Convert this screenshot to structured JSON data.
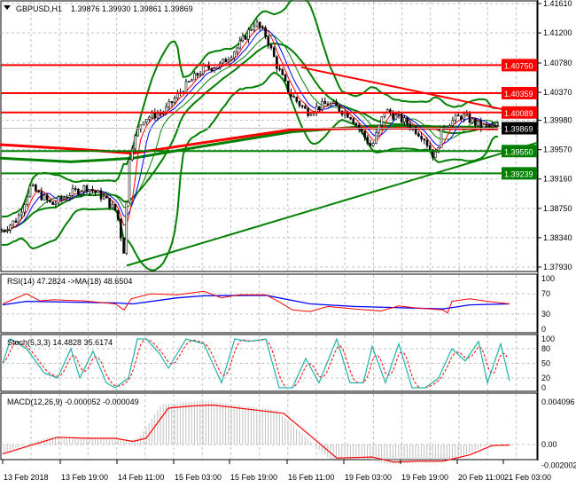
{
  "header": {
    "menu_icon": "triangle-down-icon",
    "symbol": "GBPUSD,H1",
    "ohlc": "1.39876 1.39930 1.39861 1.39869"
  },
  "colors": {
    "bull_line": "#008000",
    "bear_line": "#ff0000",
    "level_red": "#ff0000",
    "level_green": "#008000",
    "current_price_bg": "#000000",
    "grid": "#c0c0c0",
    "ma_blue": "#0000ff"
  },
  "price_axis": {
    "ticks": [
      "1.41610",
      "1.41200",
      "1.40780",
      "1.40370",
      "1.39980",
      "1.39570",
      "1.39160",
      "1.38750",
      "1.38340",
      "1.37930"
    ],
    "range": [
      1.3793,
      1.4161
    ]
  },
  "levels": [
    {
      "label": "1.40750",
      "value": 1.4075,
      "color": "red"
    },
    {
      "label": "1.40359",
      "value": 1.40359,
      "color": "red"
    },
    {
      "label": "1.40089",
      "value": 1.40089,
      "color": "red"
    },
    {
      "label": "1.39550",
      "value": 1.3955,
      "color": "green"
    },
    {
      "label": "1.39239",
      "value": 1.39239,
      "color": "green"
    }
  ],
  "current_price": "1.39869",
  "price_path": [
    [
      0,
      1.3842
    ],
    [
      20,
      1.386
    ],
    [
      35,
      1.3905
    ],
    [
      60,
      1.388
    ],
    [
      80,
      1.3895
    ],
    [
      100,
      1.3905
    ],
    [
      120,
      1.389
    ],
    [
      135,
      1.387
    ],
    [
      143,
      1.3815
    ],
    [
      150,
      1.3955
    ],
    [
      165,
      1.4
    ],
    [
      190,
      1.401
    ],
    [
      210,
      1.404
    ],
    [
      235,
      1.407
    ],
    [
      255,
      1.4075
    ],
    [
      275,
      1.41
    ],
    [
      295,
      1.4135
    ],
    [
      308,
      1.4115
    ],
    [
      320,
      1.4075
    ],
    [
      335,
      1.4035
    ],
    [
      355,
      1.401
    ],
    [
      380,
      1.4022
    ],
    [
      405,
      1.4005
    ],
    [
      430,
      1.396
    ],
    [
      445,
      1.4012
    ],
    [
      470,
      1.3995
    ],
    [
      490,
      1.3975
    ],
    [
      503,
      1.3945
    ],
    [
      512,
      1.399
    ],
    [
      535,
      1.4005
    ],
    [
      555,
      1.399
    ],
    [
      575,
      1.3987
    ]
  ],
  "trendlines": [
    {
      "color": "red",
      "from": [
        340,
        1.4072
      ],
      "to": [
        607,
        1.4003
      ]
    },
    {
      "color": "green",
      "from": [
        143,
        1.3795
      ],
      "to": [
        607,
        1.3967
      ]
    }
  ],
  "rsi": {
    "label": "RSI(14) 47.2824  ->MA(18) 48.6504",
    "ticks": [
      "100",
      "70",
      "30",
      "0"
    ],
    "line": [
      [
        3,
        50
      ],
      [
        30,
        70
      ],
      [
        45,
        56
      ],
      [
        60,
        58
      ],
      [
        95,
        56
      ],
      [
        130,
        50
      ],
      [
        140,
        38
      ],
      [
        148,
        60
      ],
      [
        170,
        70
      ],
      [
        200,
        68
      ],
      [
        230,
        75
      ],
      [
        250,
        62
      ],
      [
        270,
        68
      ],
      [
        300,
        68
      ],
      [
        315,
        54
      ],
      [
        330,
        38
      ],
      [
        350,
        35
      ],
      [
        370,
        45
      ],
      [
        400,
        40
      ],
      [
        430,
        36
      ],
      [
        450,
        46
      ],
      [
        470,
        42
      ],
      [
        500,
        38
      ],
      [
        505,
        32
      ],
      [
        510,
        55
      ],
      [
        530,
        60
      ],
      [
        550,
        55
      ],
      [
        575,
        50
      ]
    ],
    "ma": [
      [
        3,
        48
      ],
      [
        30,
        55
      ],
      [
        130,
        52
      ],
      [
        150,
        50
      ],
      [
        200,
        62
      ],
      [
        230,
        66
      ],
      [
        300,
        67
      ],
      [
        350,
        50
      ],
      [
        400,
        45
      ],
      [
        440,
        43
      ],
      [
        500,
        40
      ],
      [
        530,
        48
      ],
      [
        575,
        50
      ]
    ]
  },
  "stoch": {
    "label": "Stoch(5,3,3) 14.4828 35.6174",
    "ticks": [
      "100",
      "80",
      "50",
      "20",
      "0"
    ],
    "main": [
      [
        3,
        50
      ],
      [
        12,
        100
      ],
      [
        30,
        80
      ],
      [
        50,
        30
      ],
      [
        65,
        20
      ],
      [
        80,
        80
      ],
      [
        90,
        20
      ],
      [
        105,
        75
      ],
      [
        120,
        10
      ],
      [
        130,
        0
      ],
      [
        145,
        20
      ],
      [
        155,
        100
      ],
      [
        165,
        100
      ],
      [
        180,
        70
      ],
      [
        190,
        40
      ],
      [
        210,
        100
      ],
      [
        230,
        90
      ],
      [
        250,
        10
      ],
      [
        265,
        100
      ],
      [
        280,
        95
      ],
      [
        300,
        100
      ],
      [
        315,
        0
      ],
      [
        330,
        0
      ],
      [
        345,
        60
      ],
      [
        360,
        10
      ],
      [
        380,
        100
      ],
      [
        395,
        10
      ],
      [
        410,
        10
      ],
      [
        420,
        85
      ],
      [
        435,
        10
      ],
      [
        450,
        90
      ],
      [
        465,
        0
      ],
      [
        480,
        0
      ],
      [
        495,
        20
      ],
      [
        510,
        80
      ],
      [
        525,
        55
      ],
      [
        540,
        95
      ],
      [
        550,
        10
      ],
      [
        565,
        90
      ],
      [
        575,
        14
      ]
    ]
  },
  "macd": {
    "label": "MACD(12,26,9) -0.000052 -0.000049",
    "ticks": [
      "0.004096",
      "0.00",
      "-0.002002"
    ],
    "line": [
      [
        3,
        -0.0009
      ],
      [
        65,
        0.0007
      ],
      [
        100,
        0.0006
      ],
      [
        130,
        0.0006
      ],
      [
        150,
        0.0003
      ],
      [
        165,
        0.0006
      ],
      [
        190,
        0.0035
      ],
      [
        215,
        0.0037
      ],
      [
        240,
        0.0038
      ],
      [
        280,
        0.0034
      ],
      [
        320,
        0.003
      ],
      [
        355,
        0.0005
      ],
      [
        380,
        -0.0013
      ],
      [
        420,
        -0.0012
      ],
      [
        445,
        -0.0017
      ],
      [
        470,
        -0.0016
      ],
      [
        500,
        -0.0016
      ],
      [
        530,
        -0.001
      ],
      [
        555,
        -0.0001
      ],
      [
        575,
        -5e-05
      ]
    ]
  },
  "time_axis": [
    "13 Feb 2018",
    "13 Feb 19:00",
    "14 Feb 11:00",
    "15 Feb 03:00",
    "15 Feb 19:00",
    "16 Feb 11:00",
    "19 Feb 03:00",
    "19 Feb 19:00",
    "20 Feb 11:00",
    "21 Feb 03:00"
  ]
}
